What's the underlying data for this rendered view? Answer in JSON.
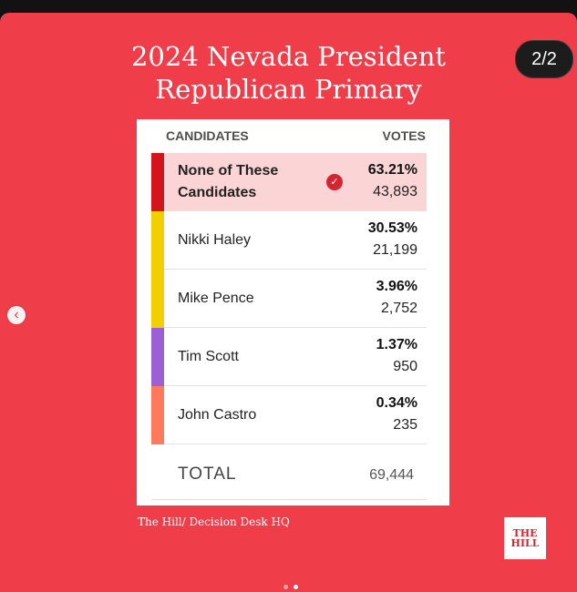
{
  "slide": {
    "counter": "2/2",
    "title_line1": "2024 Nevada President",
    "title_line2": "Republican Primary",
    "prev_icon": "chevron-left-icon"
  },
  "table": {
    "col_candidates": "CANDIDATES",
    "col_votes": "VOTES",
    "rows": [
      {
        "name_line1": "None of These",
        "name_line2": "Candidates",
        "pct": "63.21%",
        "votes": "43,893",
        "color": "#d4141c",
        "winner": true
      },
      {
        "name": "Nikki Haley",
        "pct": "30.53%",
        "votes": "21,199",
        "color": "#f2cf00"
      },
      {
        "name": "Mike Pence",
        "pct": "3.96%",
        "votes": "2,752",
        "color": "#f2cf00"
      },
      {
        "name": "Tim Scott",
        "pct": "1.37%",
        "votes": "950",
        "color": "#9b5fd6"
      },
      {
        "name": "John Castro",
        "pct": "0.34%",
        "votes": "235",
        "color": "#ff7a5c"
      }
    ],
    "total_label": "TOTAL",
    "total_votes": "69,444"
  },
  "source": "The Hill/ Decision Desk HQ",
  "logo": {
    "line1": "THE",
    "line2": "HILL"
  },
  "colors": {
    "slide_bg": "#ef3d49",
    "winner_bg": "#fbd4d6",
    "dot_active": "#ffffff",
    "dot_inactive": "#f7a3a8"
  }
}
